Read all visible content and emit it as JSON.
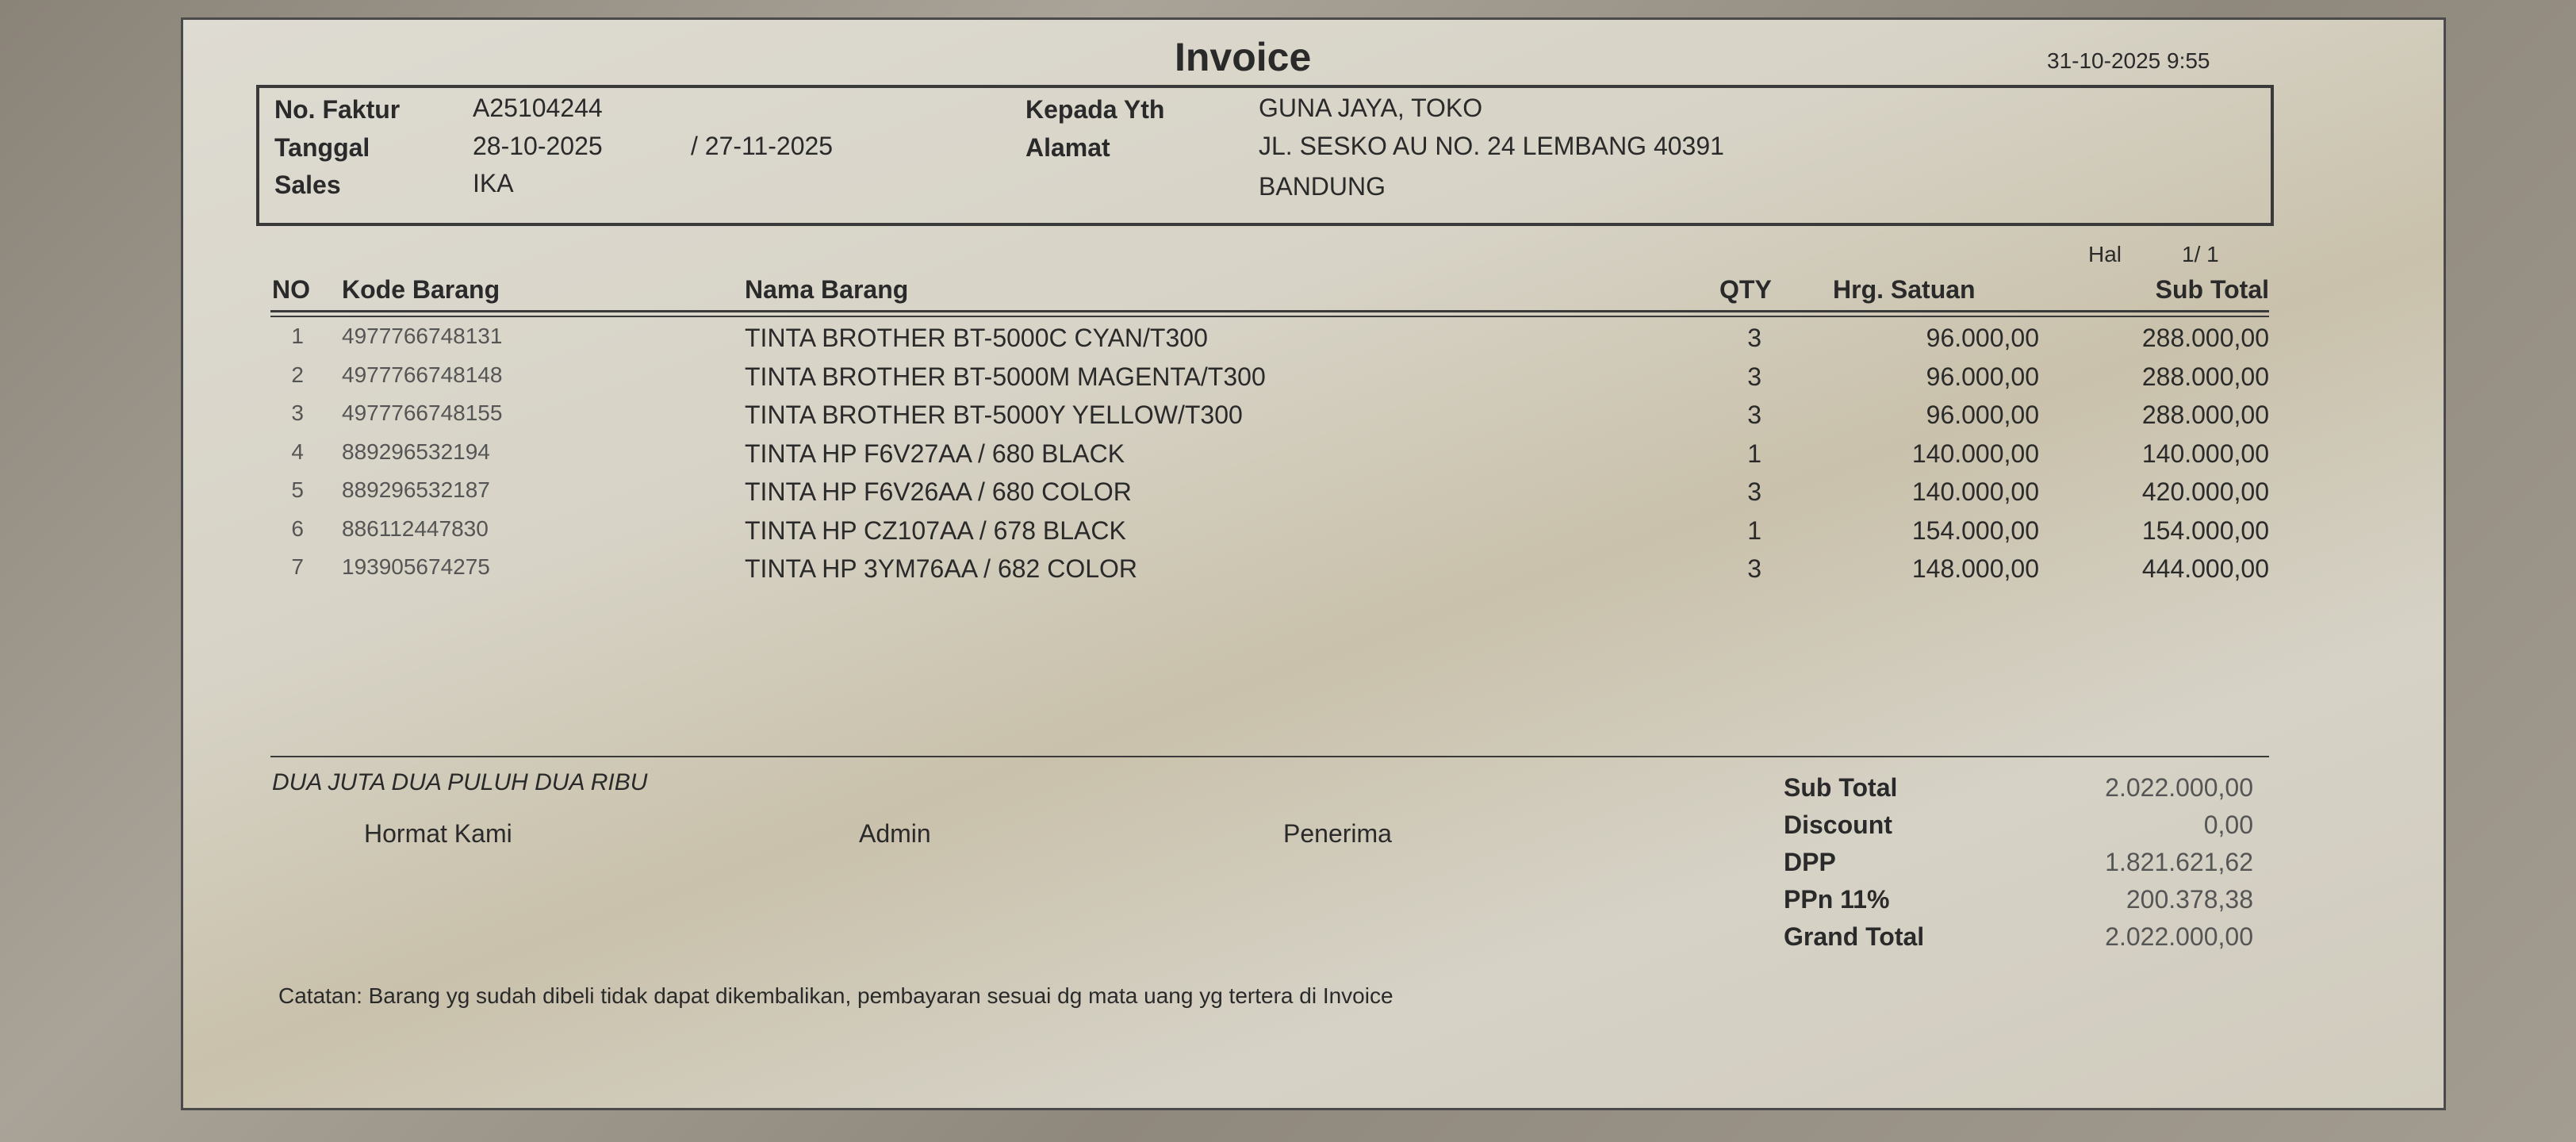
{
  "title": "Invoice",
  "printed_at": "31-10-2025 9:55",
  "header": {
    "no_faktur_label": "No. Faktur",
    "no_faktur": "A25104244",
    "tanggal_label": "Tanggal",
    "tanggal": "28-10-2025",
    "jatuh_tempo": "/ 27-11-2025",
    "sales_label": "Sales",
    "sales": "IKA",
    "kepada_label": "Kepada Yth",
    "kepada": "GUNA JAYA, TOKO",
    "alamat_label": "Alamat",
    "alamat_1": "JL. SESKO AU NO. 24 LEMBANG 40391",
    "alamat_2": "BANDUNG"
  },
  "page": {
    "label": "Hal",
    "value": "1/  1"
  },
  "table": {
    "columns": [
      "NO",
      "Kode Barang",
      "Nama Barang",
      "QTY",
      "Hrg. Satuan",
      "Sub Total"
    ],
    "rows": [
      [
        "1",
        "4977766748131",
        "TINTA BROTHER BT-5000C CYAN/T300",
        "3",
        "96.000,00",
        "288.000,00"
      ],
      [
        "2",
        "4977766748148",
        "TINTA BROTHER BT-5000M MAGENTA/T300",
        "3",
        "96.000,00",
        "288.000,00"
      ],
      [
        "3",
        "4977766748155",
        "TINTA BROTHER BT-5000Y YELLOW/T300",
        "3",
        "96.000,00",
        "288.000,00"
      ],
      [
        "4",
        "889296532194",
        "TINTA HP F6V27AA / 680 BLACK",
        "1",
        "140.000,00",
        "140.000,00"
      ],
      [
        "5",
        "889296532187",
        "TINTA HP F6V26AA / 680 COLOR",
        "3",
        "140.000,00",
        "420.000,00"
      ],
      [
        "6",
        "886112447830",
        "TINTA HP CZ107AA / 678 BLACK",
        "1",
        "154.000,00",
        "154.000,00"
      ],
      [
        "7",
        "193905674275",
        "TINTA HP 3YM76AA / 682 COLOR",
        "3",
        "148.000,00",
        "444.000,00"
      ]
    ]
  },
  "terbilang": "DUA JUTA DUA PULUH DUA RIBU",
  "signatures": [
    "Hormat Kami",
    "Admin",
    "Penerima"
  ],
  "totals": [
    {
      "label": "Sub Total",
      "value": "2.022.000,00"
    },
    {
      "label": "Discount",
      "value": "0,00"
    },
    {
      "label": "DPP",
      "value": "1.821.621,62"
    },
    {
      "label": "PPn 11%",
      "value": "200.378,38"
    },
    {
      "label": "Grand Total",
      "value": "2.022.000,00"
    }
  ],
  "catatan": "Catatan: Barang yg sudah dibeli tidak dapat dikembalikan, pembayaran sesuai dg mata uang yg tertera di Invoice"
}
